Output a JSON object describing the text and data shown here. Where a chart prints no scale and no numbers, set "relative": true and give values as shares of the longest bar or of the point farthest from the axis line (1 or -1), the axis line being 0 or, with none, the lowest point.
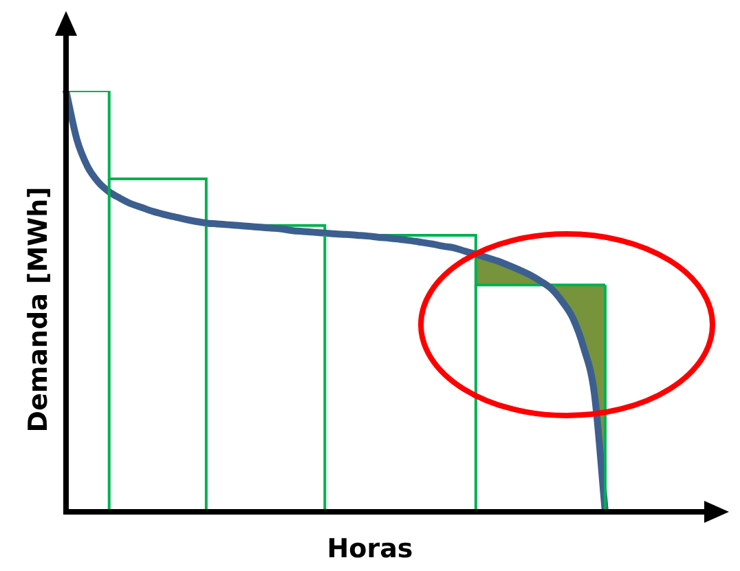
{
  "chart_data": {
    "type": "line",
    "relative": true,
    "xlabel": "Horas",
    "ylabel": "Demanda [MWh]",
    "legend": false,
    "categories": [
      null,
      null,
      null,
      null,
      null,
      null,
      null,
      null,
      null,
      null,
      null,
      null,
      null,
      null,
      null,
      null,
      null,
      null,
      null,
      null,
      null,
      null,
      null,
      null,
      null,
      null,
      null,
      null,
      null,
      null,
      null,
      null,
      null,
      null,
      null,
      null,
      null,
      null,
      null,
      null,
      null,
      null,
      null,
      null,
      null,
      null,
      null,
      null,
      null,
      null,
      null
    ],
    "series": [
      {
        "type": "step",
        "color": "#00b050",
        "values": [
          1,
          1,
          1,
          1,
          0.791,
          0.791,
          0.791,
          0.791,
          0.791,
          0.791,
          0.791,
          0.791,
          0.791,
          0.68,
          0.68,
          0.68,
          0.68,
          0.68,
          0.68,
          0.68,
          0.68,
          0.68,
          0.68,
          0.68,
          0.657,
          0.657,
          0.657,
          0.657,
          0.657,
          0.657,
          0.657,
          0.657,
          0.657,
          0.657,
          0.657,
          0.657,
          0.657,
          0.657,
          0.539,
          0.539,
          0.539,
          0.539,
          0.539,
          0.539,
          0.539,
          0.539,
          0.539,
          0.539,
          0.539,
          0.539,
          0.539
        ]
      },
      {
        "color": "#3d5f8f",
        "values": [
          1,
          0.885,
          0.82,
          0.783,
          0.76,
          0.745,
          0.732,
          0.723,
          0.714,
          0.707,
          0.701,
          0.695,
          0.69,
          0.686,
          0.684,
          0.682,
          0.68,
          0.678,
          0.676,
          0.674,
          0.672,
          0.668,
          0.666,
          0.664,
          0.662,
          0.66,
          0.659,
          0.657,
          0.655,
          0.652,
          0.65,
          0.647,
          0.644,
          0.64,
          0.636,
          0.631,
          0.627,
          0.619,
          0.612,
          0.604,
          0.596,
          0.586,
          0.575,
          0.563,
          0.548,
          0.53,
          0.5,
          0.46,
          0.39,
          0.28,
          0
        ],
        "lower": [
          null,
          null,
          null,
          null,
          null,
          null,
          null,
          null,
          null,
          null,
          null,
          null,
          null,
          null,
          null,
          null,
          null,
          null,
          null,
          null,
          null,
          null,
          null,
          null,
          null,
          null,
          null,
          null,
          null,
          null,
          null,
          null,
          null,
          null,
          null,
          null,
          null,
          null,
          0.539,
          0.539,
          0.539,
          0.539,
          0.539,
          0.539,
          0.539,
          0.53,
          0.5,
          0.46,
          0.39,
          0.28,
          0
        ],
        "upper": [
          null,
          null,
          null,
          null,
          null,
          null,
          null,
          null,
          null,
          null,
          null,
          null,
          null,
          null,
          null,
          null,
          null,
          null,
          null,
          null,
          null,
          null,
          null,
          null,
          null,
          null,
          null,
          null,
          null,
          null,
          null,
          null,
          null,
          null,
          null,
          null,
          null,
          null,
          0.612,
          0.604,
          0.596,
          0.586,
          0.575,
          0.563,
          0.548,
          0.539,
          0.539,
          0.539,
          0.539,
          0.539,
          0.539
        ]
      }
    ]
  }
}
